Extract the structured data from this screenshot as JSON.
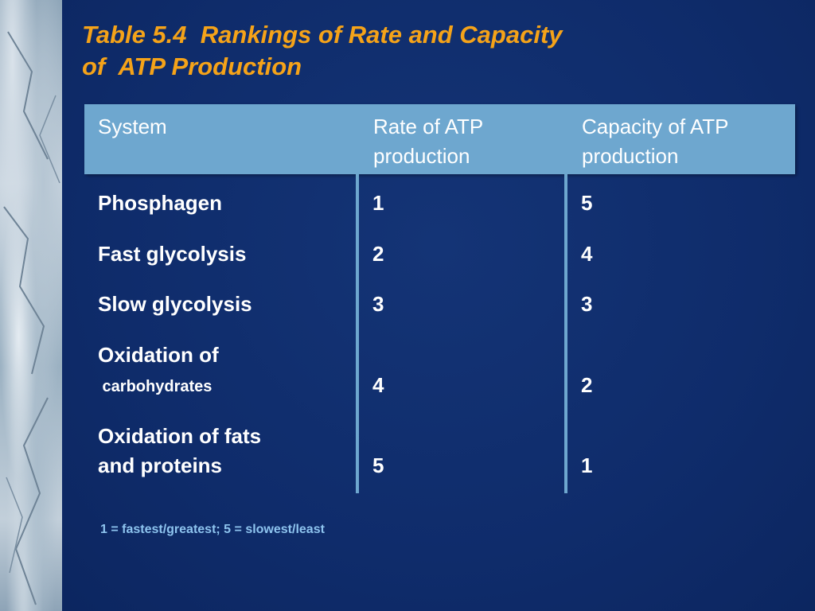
{
  "slide": {
    "title_line1": "Table 5.4  Rankings of Rate and Capacity",
    "title_line2": "of  ATP Production",
    "note": "1 = fastest/greatest; 5 = slowest/least"
  },
  "table": {
    "headers": [
      "System",
      "Rate of ATP\nproduction",
      "Capacity of ATP\nproduction"
    ],
    "rows": [
      {
        "system": "Phosphagen",
        "rate": "1",
        "capacity": "5"
      },
      {
        "system": "Fast glycolysis",
        "rate": "2",
        "capacity": "4"
      },
      {
        "system": "Slow glycolysis",
        "rate": "3",
        "capacity": "3"
      },
      {
        "system_line1": "Oxidation of",
        "system_line2": " carbohydrates",
        "rate": "4",
        "capacity": "2"
      },
      {
        "system_line1": "Oxidation of fats",
        "system_line2": "and proteins",
        "rate": "5",
        "capacity": "1"
      }
    ]
  },
  "colors": {
    "background": "#0f2c6b",
    "title": "#f5a319",
    "header_bar": "#6ea7cf",
    "note": "#8ec4ef"
  }
}
